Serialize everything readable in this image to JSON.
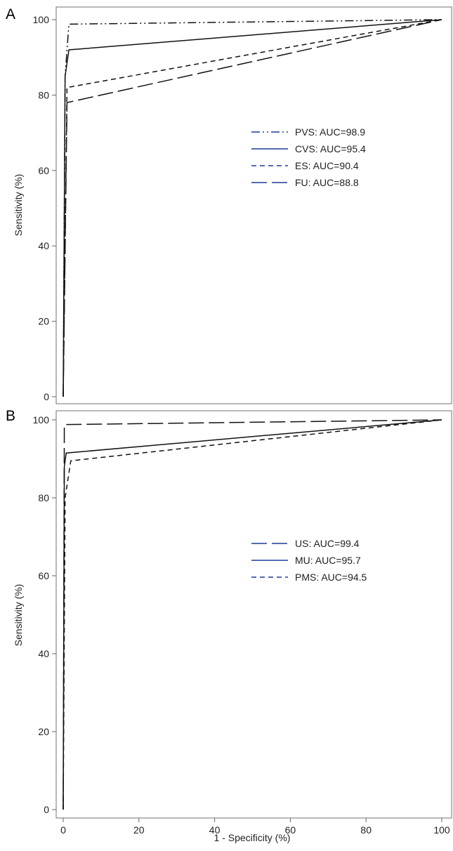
{
  "figure": {
    "xlabel": "1 - Specificity (%)"
  },
  "chart_data": [
    {
      "type": "line",
      "panel": "A",
      "xlabel": "1 - Specificity (%)",
      "ylabel": "Sensitivity (%)",
      "xlim": [
        0,
        100
      ],
      "ylim": [
        0,
        100
      ],
      "x_ticks": [
        "0",
        "20",
        "40",
        "60",
        "80",
        "100"
      ],
      "y_ticks": [
        "0",
        "20",
        "40",
        "60",
        "80",
        "100"
      ],
      "grid": false,
      "legend_position": "center-right",
      "legend_color": "#1f3a93",
      "series": [
        {
          "name": "PVS: AUC=98.9",
          "dash": "dash-dot-dot",
          "x": [
            0,
            0.5,
            1.5,
            100
          ],
          "y": [
            0,
            85,
            98.8,
            100
          ]
        },
        {
          "name": "CVS: AUC=95.4",
          "dash": "solid",
          "x": [
            0,
            0.5,
            1.5,
            100
          ],
          "y": [
            0,
            85,
            92,
            100
          ]
        },
        {
          "name": "ES: AUC=90.4",
          "dash": "short-dash",
          "x": [
            0,
            1.0,
            100
          ],
          "y": [
            0,
            82,
            100
          ]
        },
        {
          "name": "FU: AUC=88.8",
          "dash": "long-dash",
          "x": [
            0,
            1.0,
            100
          ],
          "y": [
            0,
            78,
            100
          ]
        }
      ]
    },
    {
      "type": "line",
      "panel": "B",
      "xlabel": "1 - Specificity (%)",
      "ylabel": "Sensitivity (%)",
      "xlim": [
        0,
        100
      ],
      "ylim": [
        0,
        100
      ],
      "x_ticks": [
        "0",
        "20",
        "40",
        "60",
        "80",
        "100"
      ],
      "y_ticks": [
        "0",
        "20",
        "40",
        "60",
        "80",
        "100"
      ],
      "grid": false,
      "legend_position": "center-right",
      "legend_color": "#1f3a93",
      "series": [
        {
          "name": "US: AUC=99.4",
          "dash": "long-dash",
          "x": [
            0,
            0.3,
            100
          ],
          "y": [
            0,
            98.8,
            100
          ]
        },
        {
          "name": "MU: AUC=95.7",
          "dash": "solid",
          "x": [
            0,
            0.3,
            0.8,
            100
          ],
          "y": [
            0,
            88,
            91.5,
            100
          ]
        },
        {
          "name": "PMS: AUC=94.5",
          "dash": "short-dash",
          "x": [
            0,
            0.5,
            2.0,
            100
          ],
          "y": [
            0,
            80,
            89.5,
            100
          ]
        }
      ]
    }
  ]
}
